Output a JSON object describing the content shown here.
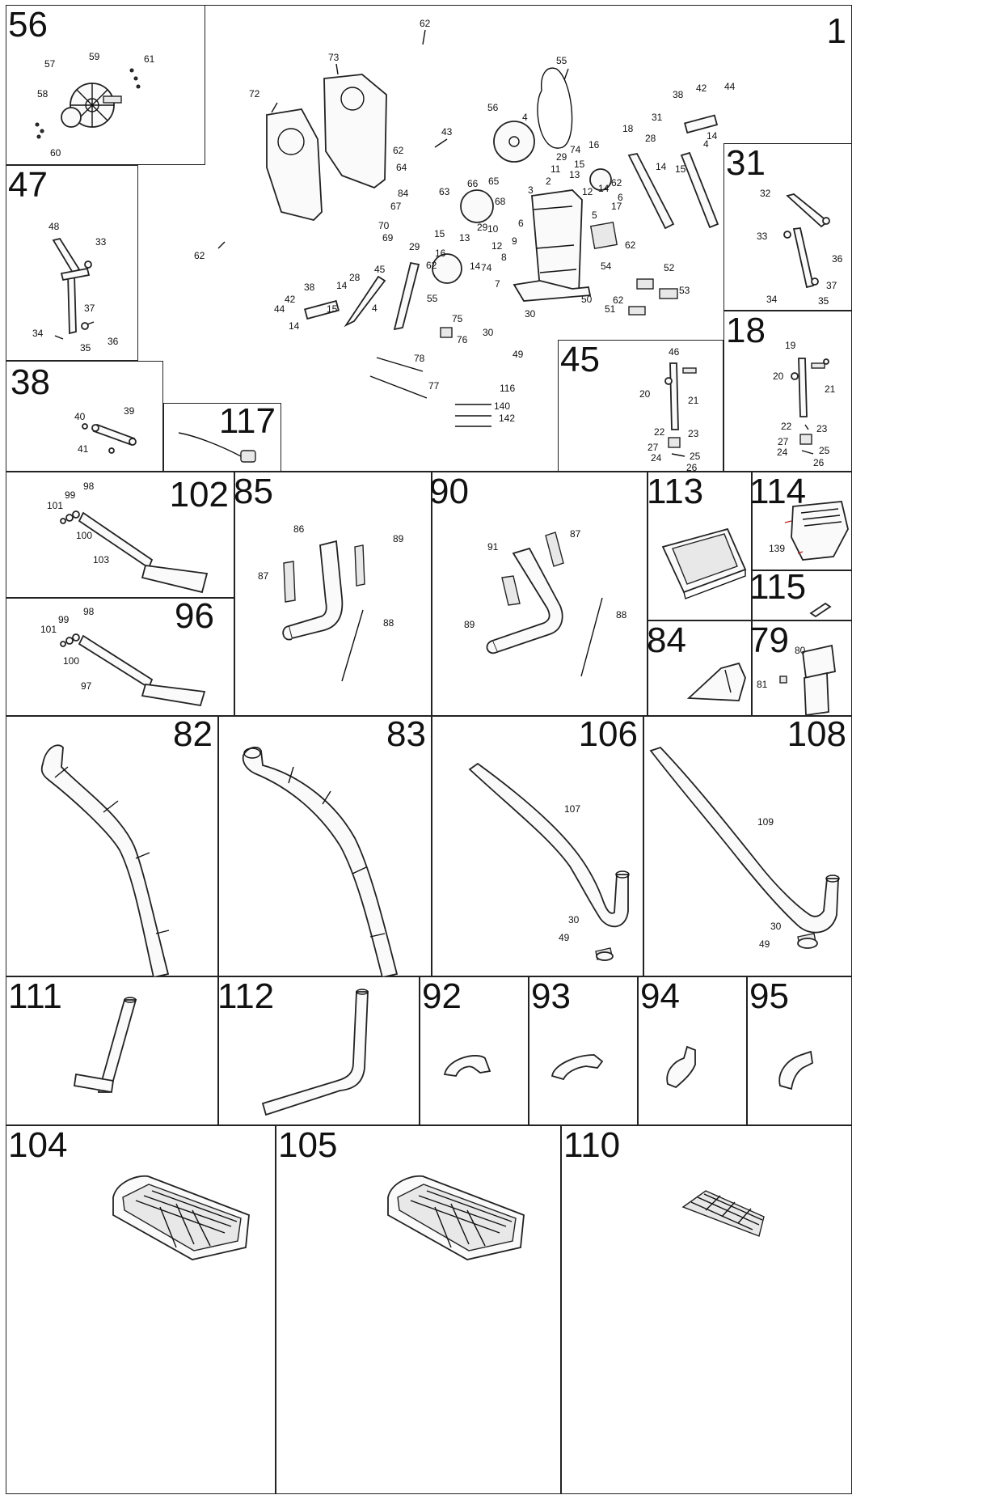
{
  "panels": [
    {
      "num": "1",
      "labels": [
        "62",
        "73",
        "72",
        "55",
        "56",
        "4",
        "43",
        "62",
        "64",
        "66",
        "65",
        "63",
        "68",
        "84",
        "67",
        "70",
        "69",
        "29",
        "10",
        "13",
        "15",
        "14",
        "12",
        "74",
        "29",
        "16",
        "62",
        "9",
        "8",
        "7",
        "6",
        "3",
        "2",
        "11",
        "29",
        "74",
        "15",
        "13",
        "14",
        "12",
        "16",
        "62",
        "6",
        "17",
        "5",
        "62",
        "18",
        "38",
        "42",
        "44",
        "31",
        "28",
        "14",
        "15",
        "4",
        "14",
        "54",
        "52",
        "50",
        "53",
        "51",
        "30",
        "30",
        "49",
        "75",
        "76",
        "78",
        "77",
        "116",
        "140",
        "142",
        "45",
        "28",
        "14",
        "15",
        "4",
        "38",
        "42",
        "44",
        "14",
        "55",
        "62",
        "62"
      ]
    },
    {
      "num": "56",
      "labels": [
        "57",
        "59",
        "61",
        "58",
        "60"
      ]
    },
    {
      "num": "47",
      "labels": [
        "48",
        "33",
        "37",
        "34",
        "35",
        "36"
      ]
    },
    {
      "num": "38",
      "labels": [
        "40",
        "39",
        "41"
      ]
    },
    {
      "num": "117",
      "labels": []
    },
    {
      "num": "31",
      "labels": [
        "32",
        "33",
        "36",
        "37",
        "34",
        "35"
      ]
    },
    {
      "num": "18",
      "labels": [
        "19",
        "20",
        "21",
        "22",
        "23",
        "27",
        "24",
        "25",
        "26"
      ]
    },
    {
      "num": "45",
      "labels": [
        "46",
        "20",
        "21",
        "22",
        "23",
        "27",
        "24",
        "25",
        "26"
      ]
    },
    {
      "num": "102",
      "labels": [
        "98",
        "99",
        "101",
        "100",
        "103"
      ]
    },
    {
      "num": "96",
      "labels": [
        "98",
        "99",
        "101",
        "100",
        "97"
      ]
    },
    {
      "num": "85",
      "labels": [
        "86",
        "89",
        "87",
        "88"
      ]
    },
    {
      "num": "90",
      "labels": [
        "87",
        "91",
        "89",
        "88"
      ]
    },
    {
      "num": "113",
      "labels": []
    },
    {
      "num": "114",
      "labels": [
        "139"
      ]
    },
    {
      "num": "115",
      "labels": []
    },
    {
      "num": "84",
      "labels": []
    },
    {
      "num": "79",
      "labels": [
        "80",
        "81"
      ]
    },
    {
      "num": "82",
      "labels": []
    },
    {
      "num": "83",
      "labels": []
    },
    {
      "num": "106",
      "labels": [
        "107",
        "30",
        "49"
      ]
    },
    {
      "num": "108",
      "labels": [
        "109",
        "30",
        "49"
      ]
    },
    {
      "num": "111",
      "labels": []
    },
    {
      "num": "112",
      "labels": []
    },
    {
      "num": "92",
      "labels": []
    },
    {
      "num": "93",
      "labels": []
    },
    {
      "num": "94",
      "labels": []
    },
    {
      "num": "95",
      "labels": []
    },
    {
      "num": "104",
      "labels": []
    },
    {
      "num": "105",
      "labels": []
    },
    {
      "num": "110",
      "labels": []
    }
  ]
}
